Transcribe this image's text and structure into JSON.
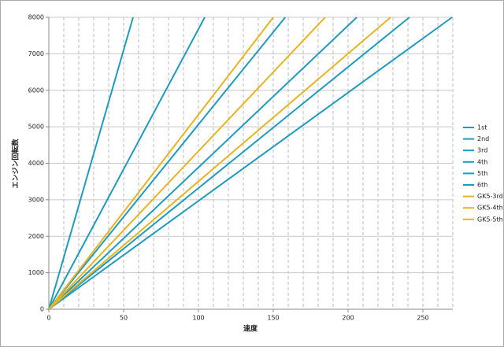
{
  "chart_data": {
    "type": "line",
    "x_label": "速度",
    "y_label": "エンジン回転数",
    "xlim": [
      0,
      270
    ],
    "xticks": [
      0,
      50,
      100,
      150,
      200,
      250
    ],
    "ylim": [
      0,
      8000
    ],
    "yticks": [
      0,
      1000,
      2000,
      3000,
      4000,
      5000,
      6000,
      7000,
      8000
    ],
    "grid": true,
    "legend": "right",
    "series": [
      {
        "name": "1st",
        "color": "#1f9bbd",
        "x": [
          0,
          56.3
        ],
        "values": [
          0,
          8000
        ]
      },
      {
        "name": "2nd",
        "color": "#1f9bbd",
        "x": [
          0,
          104.2
        ],
        "values": [
          0,
          8000
        ]
      },
      {
        "name": "3rd",
        "color": "#1f9bbd",
        "x": [
          0,
          158
        ],
        "values": [
          0,
          8000
        ]
      },
      {
        "name": "4th",
        "color": "#1f9bbd",
        "x": [
          0,
          205.8
        ],
        "values": [
          0,
          8000
        ]
      },
      {
        "name": "5th",
        "color": "#1f9bbd",
        "x": [
          0,
          241
        ],
        "values": [
          0,
          8000
        ]
      },
      {
        "name": "6th",
        "color": "#1f9bbd",
        "x": [
          0,
          269.5
        ],
        "values": [
          0,
          8000
        ]
      },
      {
        "name": "GK5-3rd",
        "color": "#e6b422",
        "x": [
          0,
          150
        ],
        "values": [
          0,
          8000
        ]
      },
      {
        "name": "GK5-4th",
        "color": "#e6b422",
        "x": [
          0,
          184.7
        ],
        "values": [
          0,
          8000
        ]
      },
      {
        "name": "GK5-5th",
        "color": "#e6b422",
        "x": [
          0,
          228.4
        ],
        "values": [
          0,
          8000
        ]
      }
    ]
  }
}
